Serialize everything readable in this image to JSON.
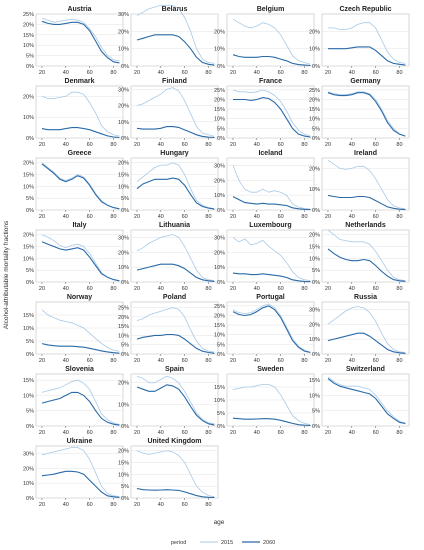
{
  "chart_data": {
    "type": "line",
    "layout": "small multiples, 4 columns",
    "xlabel": "age",
    "ylabel": "Alcohol-attributable mortality fractions",
    "x_ticks": [
      20,
      40,
      60,
      80
    ],
    "y_ticks": [
      "0%",
      "5%",
      "10%",
      "15%",
      "20%",
      "25%",
      "30%"
    ],
    "y_unit": "%",
    "grid": true,
    "legend": {
      "title": "period",
      "position": "bottom",
      "items": [
        {
          "label": "2015",
          "color": "#a9c9e6"
        },
        {
          "label": "2060",
          "color": "#2a6aa8"
        }
      ]
    },
    "x": [
      20,
      25,
      30,
      35,
      40,
      45,
      50,
      55,
      60,
      65,
      70,
      75,
      80,
      85
    ],
    "panels": [
      {
        "title": "Austria",
        "ylim": [
          0,
          25
        ],
        "ticks": [
          0,
          5,
          10,
          15,
          20,
          25
        ],
        "s2015": [
          23,
          22,
          21,
          21.5,
          22,
          22.5,
          22,
          21,
          18,
          14,
          9,
          5,
          3,
          2.5
        ],
        "s2060": [
          21.5,
          20.5,
          20,
          20,
          20.5,
          21,
          21,
          20,
          17,
          12,
          7,
          4,
          2,
          1.5
        ]
      },
      {
        "title": "Belarus",
        "ylim": [
          0,
          30
        ],
        "ticks": [
          0,
          10,
          20,
          30
        ],
        "s2015": [
          29,
          31,
          33,
          34,
          35,
          35,
          35,
          33,
          28,
          20,
          10,
          4,
          2,
          1.5
        ],
        "s2060": [
          15,
          16,
          17,
          18,
          18,
          18,
          18,
          17,
          14,
          10,
          5,
          2,
          1,
          0.5
        ]
      },
      {
        "title": "Belgium",
        "ylim": [
          0,
          30
        ],
        "ticks": [
          0,
          10,
          20
        ],
        "s2015": [
          27,
          25,
          23,
          22,
          23,
          25,
          24,
          22,
          18,
          12,
          6,
          3,
          2,
          1
        ],
        "s2060": [
          6.5,
          5.5,
          5,
          5,
          5,
          5.5,
          5.5,
          5,
          4,
          3,
          1.5,
          0.8,
          0.5,
          0.3
        ]
      },
      {
        "title": "Czech Republic",
        "ylim": [
          0,
          30
        ],
        "ticks": [
          0,
          10,
          20
        ],
        "s2015": [
          22,
          22,
          21,
          21,
          22,
          24,
          25,
          25,
          22,
          15,
          8,
          4,
          2,
          1.5
        ],
        "s2060": [
          10,
          10,
          10,
          10,
          10.5,
          11,
          11,
          11,
          9,
          6,
          3,
          1.5,
          1,
          0.5
        ]
      },
      {
        "title": "Denmark",
        "ylim": [
          0,
          25
        ],
        "ticks": [
          0,
          10,
          20
        ],
        "s2015": [
          20,
          19,
          19,
          19.5,
          20,
          22,
          22,
          21,
          17,
          12,
          6,
          3,
          1.5,
          1
        ],
        "s2060": [
          4.5,
          4,
          4,
          4,
          4.5,
          5,
          5,
          4.5,
          4,
          3,
          2,
          1,
          0.5,
          0.3
        ]
      },
      {
        "title": "Finland",
        "ylim": [
          0,
          32
        ],
        "ticks": [
          0,
          10,
          20,
          30
        ],
        "s2015": [
          20,
          21,
          23,
          25,
          27,
          30,
          31,
          29,
          23,
          15,
          7,
          3,
          2,
          1
        ],
        "s2060": [
          6,
          5.5,
          5.5,
          5.5,
          6,
          7,
          7,
          6.5,
          5,
          3.5,
          2,
          1,
          0.5,
          0.3
        ]
      },
      {
        "title": "France",
        "ylim": [
          0,
          27
        ],
        "ticks": [
          0,
          5,
          10,
          15,
          20,
          25
        ],
        "s2015": [
          25,
          24,
          24,
          23.5,
          24,
          25,
          24,
          22,
          19,
          14,
          8,
          4,
          2,
          1
        ],
        "s2060": [
          20,
          20,
          20,
          19.5,
          20,
          21,
          20.5,
          18.5,
          15,
          10,
          5,
          2,
          1,
          0.5
        ]
      },
      {
        "title": "Germany",
        "ylim": [
          0,
          27
        ],
        "ticks": [
          0,
          5,
          10,
          15,
          20,
          25
        ],
        "s2015": [
          24,
          23,
          22.5,
          22.5,
          23,
          24,
          24,
          23,
          20,
          15,
          9,
          5,
          2,
          1
        ],
        "s2060": [
          23.5,
          22.5,
          22,
          22,
          22.5,
          23.5,
          23.5,
          22.5,
          19,
          14,
          8,
          4,
          2,
          1
        ]
      },
      {
        "title": "Greece",
        "ylim": [
          0,
          22
        ],
        "ticks": [
          0,
          5,
          10,
          15,
          20
        ],
        "s2015": [
          20,
          18,
          16,
          13.5,
          12.5,
          13.5,
          15,
          14,
          11,
          7,
          4,
          2,
          1,
          0.5
        ],
        "s2060": [
          19.5,
          17.5,
          15.5,
          13,
          12,
          13,
          14.5,
          13.5,
          10.5,
          6.5,
          3.5,
          2,
          1,
          0.5
        ]
      },
      {
        "title": "Hungary",
        "ylim": [
          0,
          22
        ],
        "ticks": [
          0,
          5,
          10,
          15,
          20
        ],
        "s2015": [
          12,
          14,
          16,
          18,
          19,
          19,
          20,
          19,
          15,
          9,
          4,
          2,
          1,
          0.5
        ],
        "s2060": [
          9,
          11,
          12,
          13,
          13,
          13,
          13.5,
          13,
          10.5,
          6.5,
          3,
          1.5,
          0.8,
          0.4
        ]
      },
      {
        "title": "Iceland",
        "ylim": [
          0,
          35
        ],
        "ticks": [
          0,
          10,
          20,
          30
        ],
        "s2015": [
          30,
          20,
          14,
          12,
          12,
          14,
          12,
          13,
          12,
          10,
          4,
          2,
          1,
          0.5
        ],
        "s2060": [
          9,
          7,
          5,
          4.5,
          4,
          4.5,
          4,
          4,
          3.5,
          3,
          1.5,
          0.8,
          0.5,
          0.3
        ]
      },
      {
        "title": "Ireland",
        "ylim": [
          0,
          25
        ],
        "ticks": [
          0,
          10,
          20
        ],
        "s2015": [
          24,
          22,
          20,
          19.5,
          20,
          21,
          21,
          19,
          15,
          10,
          5,
          2,
          1,
          0.5
        ],
        "s2060": [
          7,
          6.5,
          6,
          6,
          6,
          6.5,
          6.5,
          6,
          4.5,
          3,
          1.5,
          0.8,
          0.4,
          0.2
        ]
      },
      {
        "title": "Italy",
        "ylim": [
          0,
          22
        ],
        "ticks": [
          0,
          5,
          10,
          15,
          20
        ],
        "s2015": [
          20,
          19,
          17.5,
          15.5,
          14.5,
          15.5,
          16,
          15,
          12,
          8,
          4,
          2,
          1,
          0.5
        ],
        "s2060": [
          17,
          16,
          15,
          14,
          13.5,
          14,
          14.5,
          13.5,
          10.5,
          7,
          3.5,
          2,
          1,
          0.5
        ]
      },
      {
        "title": "Lithuania",
        "ylim": [
          0,
          35
        ],
        "ticks": [
          0,
          10,
          20,
          30
        ],
        "s2015": [
          21,
          23,
          26,
          28,
          30,
          31,
          32,
          30,
          24,
          16,
          8,
          3,
          1.5,
          1
        ],
        "s2060": [
          8,
          9,
          10,
          11,
          12,
          12,
          12,
          11,
          9,
          6,
          3,
          1.5,
          0.8,
          0.4
        ]
      },
      {
        "title": "Luxembourg",
        "ylim": [
          0,
          35
        ],
        "ticks": [
          0,
          10,
          20,
          30
        ],
        "s2015": [
          30,
          27,
          29,
          25,
          26,
          28,
          24,
          21,
          18,
          13,
          7,
          3,
          1.5,
          1
        ],
        "s2060": [
          6,
          5.5,
          5.5,
          5,
          5,
          5.5,
          5,
          4.5,
          4,
          3,
          1.5,
          0.8,
          0.4,
          0.2
        ]
      },
      {
        "title": "Netherlands",
        "ylim": [
          0,
          22
        ],
        "ticks": [
          0,
          5,
          10,
          15,
          20
        ],
        "s2015": [
          22,
          20,
          18,
          17.5,
          17,
          17,
          17,
          16,
          13,
          9,
          5,
          2,
          1,
          0.5
        ],
        "s2060": [
          14,
          12,
          10.5,
          9.5,
          9,
          9,
          9.5,
          9,
          7,
          4.5,
          2.5,
          1,
          0.5,
          0.3
        ]
      },
      {
        "title": "Norway",
        "ylim": [
          0,
          20
        ],
        "ticks": [
          0,
          5,
          10,
          15
        ],
        "s2015": [
          17,
          15,
          14,
          13,
          12.5,
          12,
          11,
          10,
          8,
          6,
          4,
          2.5,
          1.5,
          1
        ],
        "s2060": [
          4,
          3.5,
          3.2,
          3,
          3,
          3,
          2.8,
          2.6,
          2.2,
          1.7,
          1.2,
          0.8,
          0.5,
          0.3
        ]
      },
      {
        "title": "Poland",
        "ylim": [
          0,
          28
        ],
        "ticks": [
          0,
          5,
          10,
          15,
          20,
          25
        ],
        "s2015": [
          18,
          19,
          21,
          22,
          23,
          24,
          25,
          24,
          20,
          13,
          7,
          3,
          1.5,
          1
        ],
        "s2060": [
          8,
          9,
          9.5,
          10,
          10,
          10.5,
          10.5,
          10,
          8,
          5.5,
          3,
          1.5,
          0.8,
          0.4
        ]
      },
      {
        "title": "Portugal",
        "ylim": [
          0,
          27
        ],
        "ticks": [
          0,
          5,
          10,
          15,
          20,
          25
        ],
        "s2015": [
          23,
          21.5,
          21,
          21.5,
          23,
          25,
          26,
          24,
          20,
          14,
          8,
          4,
          2,
          1
        ],
        "s2060": [
          22,
          20.5,
          20,
          20.5,
          22,
          24,
          25,
          23,
          19,
          13,
          7,
          3.5,
          1.5,
          0.8
        ]
      },
      {
        "title": "Russia",
        "ylim": [
          0,
          35
        ],
        "ticks": [
          0,
          10,
          20,
          30
        ],
        "s2015": [
          20,
          23,
          26,
          29,
          31,
          32,
          31,
          28,
          22,
          14,
          7,
          3,
          1.5,
          1
        ],
        "s2060": [
          9,
          10,
          11,
          12,
          13,
          14,
          14,
          12,
          9,
          6,
          3,
          1.5,
          0.8,
          0.4
        ]
      },
      {
        "title": "Slovenia",
        "ylim": [
          0,
          17
        ],
        "ticks": [
          0,
          5,
          10,
          15
        ],
        "s2015": [
          11,
          11.5,
          12,
          12.5,
          13.5,
          14.5,
          15,
          14,
          12,
          8,
          4,
          2,
          1,
          0.5
        ],
        "s2060": [
          7.5,
          8,
          8.5,
          9,
          10,
          11,
          11,
          10,
          8,
          5,
          2.5,
          1.2,
          0.6,
          0.3
        ]
      },
      {
        "title": "Spain",
        "ylim": [
          0,
          24
        ],
        "ticks": [
          0,
          10,
          20
        ],
        "s2015": [
          23,
          22,
          20,
          20,
          21.5,
          23,
          22,
          20,
          16,
          11,
          6,
          3,
          1.5,
          1
        ],
        "s2060": [
          18,
          17,
          16,
          16,
          17.5,
          19,
          18.5,
          17,
          13.5,
          9,
          5,
          2.5,
          1,
          0.5
        ]
      },
      {
        "title": "Sweden",
        "ylim": [
          0,
          20
        ],
        "ticks": [
          0,
          5,
          10,
          15
        ],
        "s2015": [
          14,
          14.5,
          15,
          15,
          15.5,
          16,
          16,
          15,
          12,
          8,
          4,
          2,
          1,
          0.5
        ],
        "s2060": [
          3,
          2.8,
          2.6,
          2.6,
          2.7,
          2.8,
          2.8,
          2.6,
          2.2,
          1.6,
          1,
          0.5,
          0.3,
          0.2
        ]
      },
      {
        "title": "Switzerland",
        "ylim": [
          0,
          17
        ],
        "ticks": [
          0,
          5,
          10,
          15
        ],
        "s2015": [
          16,
          14.5,
          13.5,
          13,
          13,
          13,
          12.5,
          12,
          10,
          7.5,
          5,
          3,
          1.5,
          1
        ],
        "s2060": [
          15.5,
          14,
          13,
          12.5,
          12,
          11.5,
          11,
          10.5,
          9,
          6.5,
          4,
          2.5,
          1.2,
          0.8
        ]
      },
      {
        "title": "Ukraine",
        "ylim": [
          0,
          35
        ],
        "ticks": [
          0,
          10,
          20,
          30
        ],
        "s2015": [
          29,
          30,
          31,
          32,
          33,
          34,
          34,
          32,
          26,
          17,
          8,
          3,
          1.5,
          1
        ],
        "s2060": [
          15,
          15.5,
          16,
          17,
          18,
          18,
          17.5,
          16,
          12,
          8,
          4,
          1.5,
          0.8,
          0.4
        ]
      },
      {
        "title": "United Kingdom",
        "ylim": [
          0,
          22
        ],
        "ticks": [
          0,
          5,
          10,
          15,
          20
        ],
        "s2015": [
          20,
          19,
          18.5,
          19,
          19.5,
          20,
          19.5,
          18,
          15,
          10,
          5,
          2.5,
          1,
          0.5
        ],
        "s2060": [
          4,
          3.5,
          3.4,
          3.3,
          3.4,
          3.5,
          3.4,
          3.2,
          2.6,
          1.8,
          1,
          0.5,
          0.3,
          0.2
        ]
      }
    ]
  }
}
